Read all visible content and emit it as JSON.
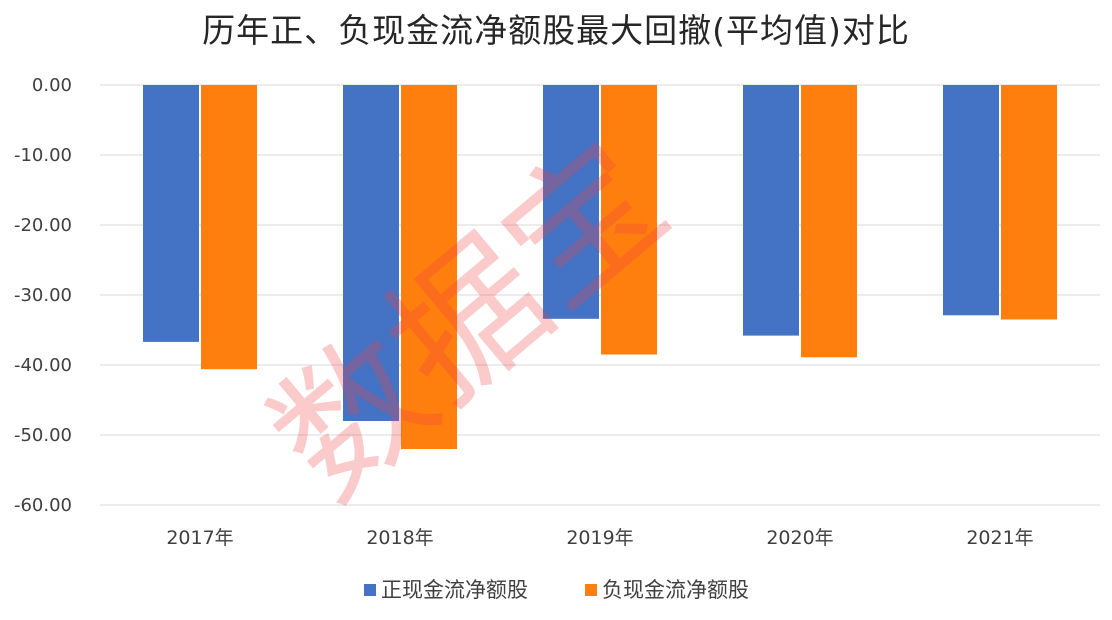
{
  "chart_data": {
    "type": "bar",
    "title": "历年正、负现金流净额股最大回撤(平均值)对比",
    "categories": [
      "2017年",
      "2018年",
      "2019年",
      "2020年",
      "2021年"
    ],
    "series": [
      {
        "name": "正现金流净额股",
        "values": [
          -36.7,
          -48.0,
          -33.4,
          -35.8,
          -32.9
        ],
        "color": "#4472c4"
      },
      {
        "name": "负现金流净额股",
        "values": [
          -40.6,
          -52.0,
          -38.5,
          -38.9,
          -33.5
        ],
        "color": "#ff7f0e"
      }
    ],
    "ylim": [
      -60,
      0
    ],
    "yticks": [
      0,
      -10,
      -20,
      -30,
      -40,
      -50,
      -60
    ],
    "ytick_labels": [
      "0.00",
      "-10.00",
      "-20.00",
      "-30.00",
      "-40.00",
      "-50.00",
      "-60.00"
    ],
    "grid": true,
    "legend": "bottom",
    "watermark": "数据宝"
  }
}
